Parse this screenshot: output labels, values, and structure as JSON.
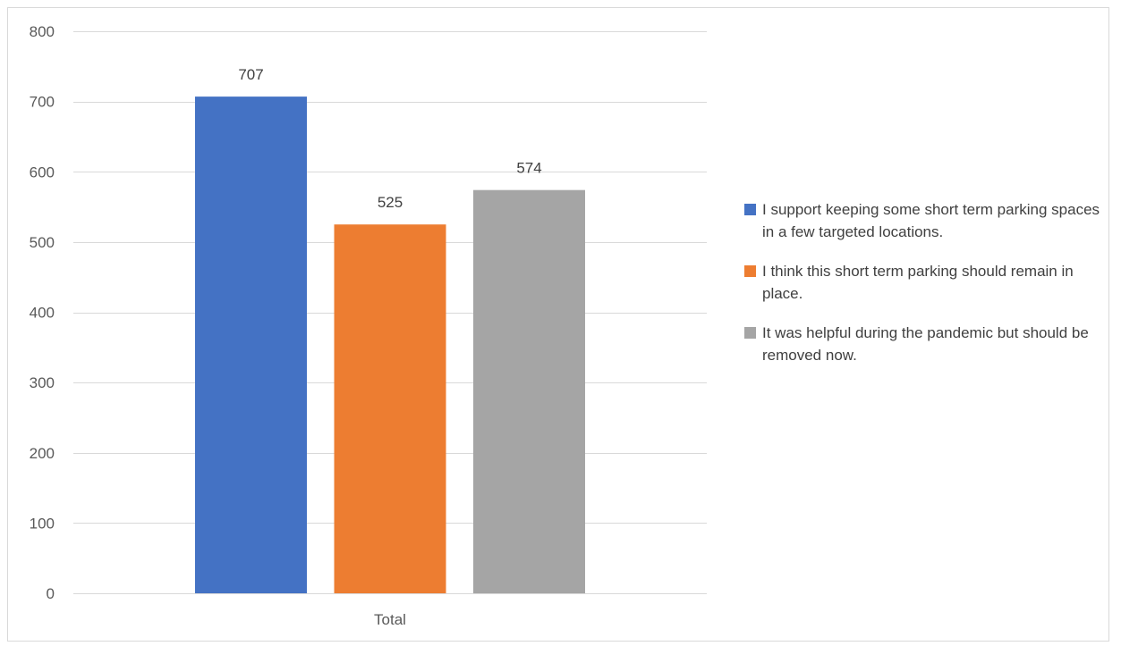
{
  "chart_data": {
    "type": "bar",
    "categories": [
      "Total"
    ],
    "series": [
      {
        "name": "I support keeping some short term parking spaces in a few targeted locations.",
        "values": [
          707
        ],
        "color": "#4472C4"
      },
      {
        "name": "I think this short term parking should remain in place.",
        "values": [
          525
        ],
        "color": "#ED7D31"
      },
      {
        "name": "It was helpful during the pandemic but should be removed now.",
        "values": [
          574
        ],
        "color": "#A5A5A5"
      }
    ],
    "ylim": [
      0,
      800
    ],
    "yticks": [
      0,
      100,
      200,
      300,
      400,
      500,
      600,
      700,
      800
    ],
    "grid": true,
    "data_labels": true,
    "legend_position": "right"
  }
}
